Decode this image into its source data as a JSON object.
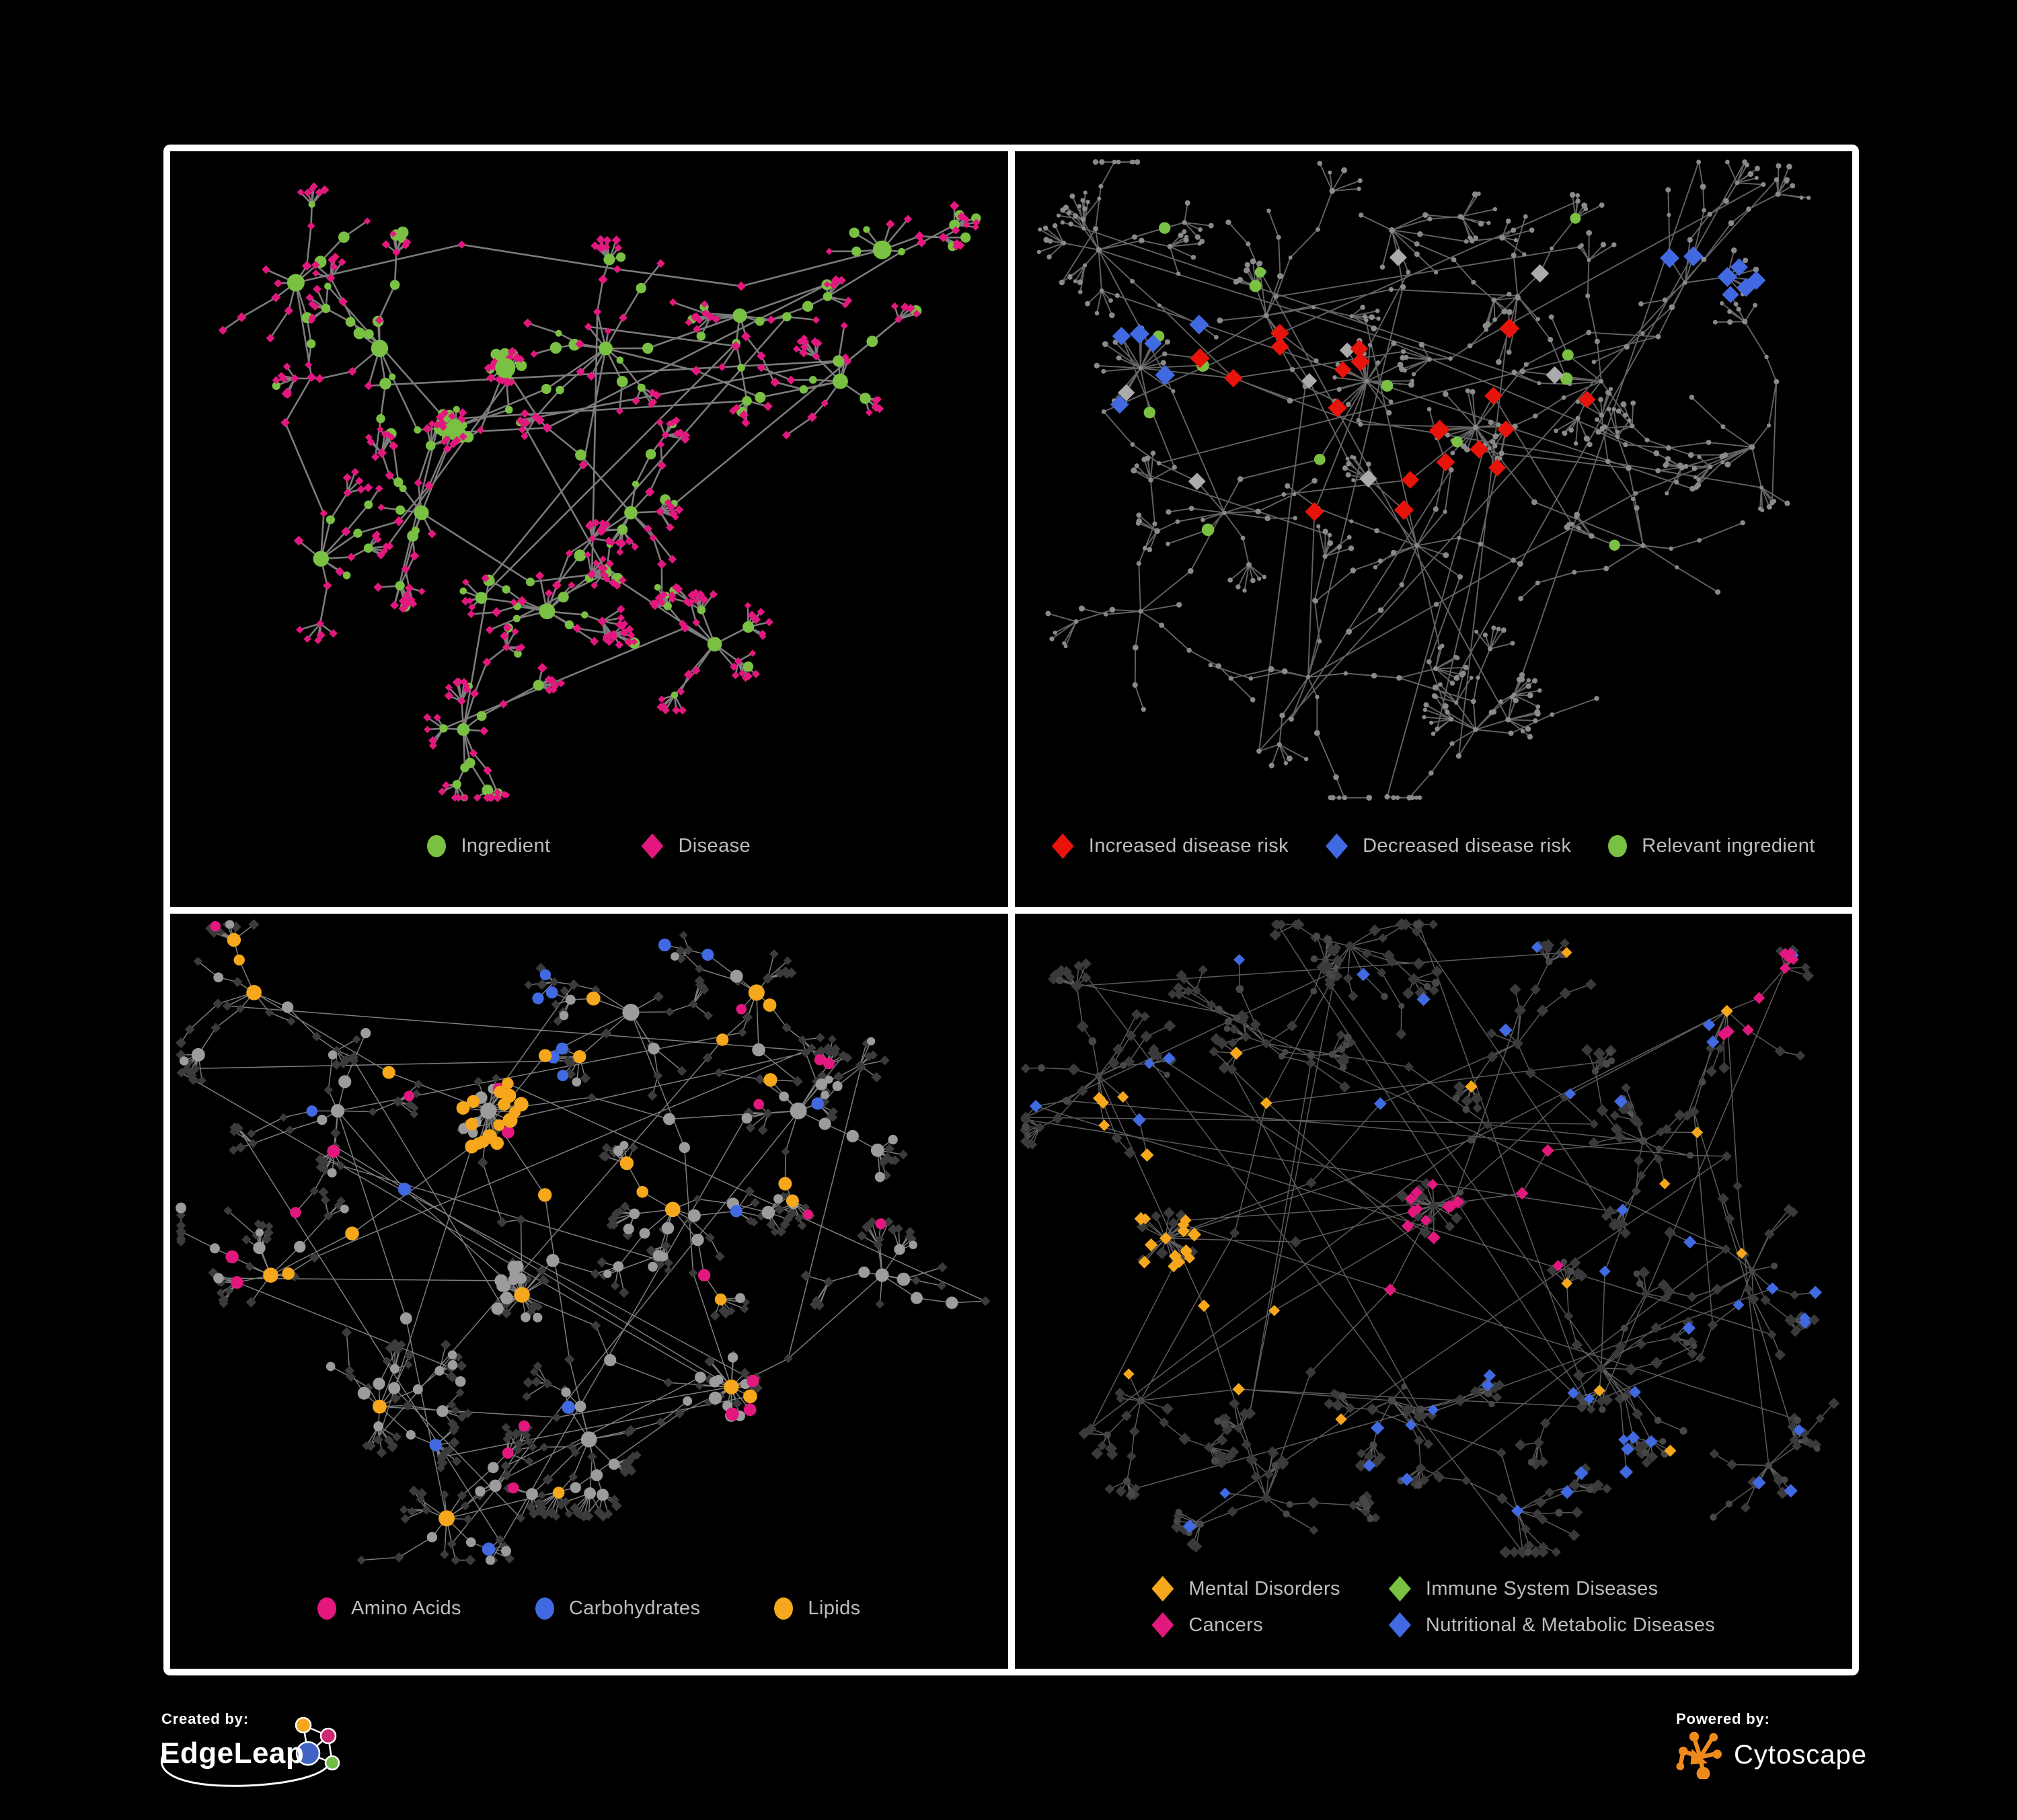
{
  "figure": {
    "background": "#000000",
    "frame_color": "#FFFFFF",
    "legend_text_color": "#BDBDBD"
  },
  "panels": [
    {
      "name": "ingredient-disease",
      "legend_layout": "row",
      "legend_gap": 135,
      "legend": [
        {
          "shape": "circle",
          "color": "#7AC143",
          "label": "Ingredient"
        },
        {
          "shape": "diamond",
          "color": "#E3187F",
          "label": "Disease"
        }
      ],
      "network": {
        "seed": 7,
        "hubs": 14,
        "mega": 2,
        "mega_branches": 24,
        "mega_step": 0.45,
        "hub_pos": [
          [
            0.34,
            0.42
          ],
          [
            0.4,
            0.33
          ],
          [
            0.3,
            0.55
          ],
          [
            0.52,
            0.3
          ],
          [
            0.25,
            0.3
          ],
          [
            0.55,
            0.55
          ],
          [
            0.18,
            0.62
          ],
          [
            0.45,
            0.7
          ],
          [
            0.68,
            0.25
          ],
          [
            0.8,
            0.35
          ],
          [
            0.35,
            0.88
          ],
          [
            0.65,
            0.75
          ],
          [
            0.15,
            0.2
          ],
          [
            0.85,
            0.15
          ]
        ],
        "branch_min": 6,
        "branch_max": 12,
        "steps": 3,
        "step_min": 26,
        "step_max": 60,
        "fan_prob": 0.5,
        "fan_min": 4,
        "fan_max": 9,
        "fan_d_min": 16,
        "fan_d_max": 34,
        "extra_links": 18,
        "edge_color": "#8A8A8A",
        "edge_width": 2.6,
        "rules": [
          {
            "kinds": [
              "hub"
            ],
            "shape": "circle",
            "color": "#7AC143",
            "rmin": 9,
            "rmax": 16,
            "frac": 1
          },
          {
            "kinds": [
              "leaf"
            ],
            "shape": "diamond",
            "color": "#E3187F",
            "rmin": 4.5,
            "rmax": 6,
            "frac": 0.8
          },
          {
            "shape": "diamond",
            "color": "#E3187F",
            "rmin": 5,
            "rmax": 6.5,
            "frac": 0.5
          },
          {
            "shape": "circle",
            "color": "#7AC143",
            "rmin": 5,
            "rmax": 9,
            "frac": 1
          }
        ]
      }
    },
    {
      "name": "disease-risk",
      "legend_layout": "row",
      "legend_gap": 55,
      "legend": [
        {
          "shape": "diamond",
          "color": "#E8140B",
          "label": "Increased disease risk"
        },
        {
          "shape": "diamond",
          "color": "#4169E1",
          "label": "Decreased disease risk"
        },
        {
          "shape": "circle",
          "color": "#7AC143",
          "label": "Relevant ingredient"
        }
      ],
      "network": {
        "seed": 21,
        "hubs": 16,
        "mega": 3,
        "mega_branches": 20,
        "mega_step": 1,
        "hub_pos": [
          [
            0.42,
            0.35
          ],
          [
            0.15,
            0.33
          ],
          [
            0.55,
            0.42
          ],
          [
            0.3,
            0.25
          ],
          [
            0.6,
            0.22
          ],
          [
            0.25,
            0.55
          ],
          [
            0.48,
            0.6
          ],
          [
            0.7,
            0.35
          ],
          [
            0.8,
            0.2
          ],
          [
            0.15,
            0.7
          ],
          [
            0.35,
            0.8
          ],
          [
            0.55,
            0.88
          ],
          [
            0.75,
            0.6
          ],
          [
            0.88,
            0.45
          ],
          [
            0.1,
            0.15
          ],
          [
            0.45,
            0.12
          ]
        ],
        "branch_min": 5,
        "branch_max": 10,
        "steps": 4,
        "step_min": 30,
        "step_max": 72,
        "fan_prob": 0.45,
        "fan_min": 4,
        "fan_max": 8,
        "fan_d_min": 20,
        "fan_d_max": 46,
        "extra_links": 30,
        "edge_color": "#6E6E6E",
        "edge_width": 1.9,
        "rules": [
          {
            "zone": [
              0.78,
              0.1,
              0.93,
              0.24
            ],
            "shape": "diamond",
            "color": "#4169E1",
            "rmin": 11,
            "rmax": 13,
            "frac": 0.5
          },
          {
            "kinds": [
              "chain"
            ],
            "zone": [
              0.07,
              0.25,
              0.22,
              0.48
            ],
            "shape": "diamond",
            "color": "#4169E1",
            "rmin": 11,
            "rmax": 13,
            "frac": 0.25
          },
          {
            "kinds": [
              "chain"
            ],
            "zone": [
              0.22,
              0.18,
              0.72,
              0.55
            ],
            "shape": "diamond",
            "color": "#E8140B",
            "rmin": 11,
            "rmax": 13,
            "frac": 0.22
          },
          {
            "kinds": [
              "chain"
            ],
            "zone": [
              0.68,
              0.75,
              0.88,
              0.95
            ],
            "shape": "diamond",
            "color": "#E8140B",
            "rmin": 11,
            "rmax": 13,
            "frac": 0.18
          },
          {
            "kinds": [
              "chain"
            ],
            "zone": [
              0.1,
              0.15,
              0.7,
              0.6
            ],
            "shape": "diamond",
            "color": "#ABABAB",
            "rmin": 10,
            "rmax": 12,
            "frac": 0.05
          },
          {
            "kinds": [
              "chain"
            ],
            "zone": [
              0.12,
              0.1,
              0.72,
              0.6
            ],
            "shape": "circle",
            "color": "#7AC143",
            "rmin": 7.5,
            "rmax": 9.5,
            "frac": 0.18
          },
          {
            "shape": "circle",
            "color": "#8A8A8A",
            "rmin": 3,
            "rmax": 4.5,
            "frac": 1
          }
        ]
      }
    },
    {
      "name": "ingredient-classes",
      "legend_layout": "row",
      "legend_gap": 110,
      "legend": [
        {
          "shape": "circle",
          "color": "#E3187F",
          "label": "Amino Acids"
        },
        {
          "shape": "circle",
          "color": "#4169E1",
          "label": "Carbohydrates"
        },
        {
          "shape": "circle",
          "color": "#F6A71B",
          "label": "Lipids"
        }
      ],
      "network": {
        "seed": 33,
        "hubs": 14,
        "mega": 3,
        "mega_branches": 30,
        "mega_step": 0.8,
        "hub_pos": [
          [
            0.38,
            0.3
          ],
          [
            0.42,
            0.58
          ],
          [
            0.67,
            0.72
          ],
          [
            0.2,
            0.3
          ],
          [
            0.33,
            0.92
          ],
          [
            0.55,
            0.15
          ],
          [
            0.12,
            0.55
          ],
          [
            0.25,
            0.75
          ],
          [
            0.6,
            0.45
          ],
          [
            0.75,
            0.3
          ],
          [
            0.85,
            0.55
          ],
          [
            0.5,
            0.8
          ],
          [
            0.1,
            0.12
          ],
          [
            0.7,
            0.12
          ]
        ],
        "branch_min": 6,
        "branch_max": 11,
        "steps": 3,
        "step_min": 26,
        "step_max": 64,
        "fan_prob": 0.5,
        "fan_min": 4,
        "fan_max": 10,
        "fan_d_min": 16,
        "fan_d_max": 40,
        "extra_links": 24,
        "edge_color": "#8C8C8C",
        "edge_width": 1.5,
        "rules": [
          {
            "kinds": [
              "hub"
            ],
            "shape": "circle",
            "color": "#9C9C9C",
            "rmin": 10,
            "rmax": 14,
            "frac": 0.7
          },
          {
            "kinds": [
              "hub"
            ],
            "shape": "circle",
            "color": "#F6A71B",
            "rmin": 10,
            "rmax": 13,
            "frac": 1
          },
          {
            "kinds": [
              "chain"
            ],
            "zone": [
              0.25,
              0.15,
              0.52,
              0.45
            ],
            "shape": "circle",
            "color": "#F6A71B",
            "rmin": 8.5,
            "rmax": 11,
            "frac": 0.4
          },
          {
            "zone": [
              0.42,
              0.03,
              0.6,
              0.25
            ],
            "shape": "circle",
            "color": "#4169E1",
            "rmin": 8,
            "rmax": 10,
            "frac": 0.14
          },
          {
            "kinds": [
              "chain"
            ],
            "shape": "circle",
            "color": "#F6A71B",
            "rmin": 8,
            "rmax": 10.5,
            "frac": 0.06
          },
          {
            "kinds": [
              "chain"
            ],
            "shape": "circle",
            "color": "#E3187F",
            "rmin": 8,
            "rmax": 10,
            "frac": 0.05
          },
          {
            "kinds": [
              "chain"
            ],
            "shape": "circle",
            "color": "#4169E1",
            "rmin": 8,
            "rmax": 10,
            "frac": 0.015
          },
          {
            "kinds": [
              "chain"
            ],
            "shape": "circle",
            "color": "#9C9C9C",
            "rmin": 7,
            "rmax": 10,
            "frac": 0.45
          },
          {
            "kinds": [
              "leaf"
            ],
            "shape": "circle",
            "color": "#E3187F",
            "rmin": 7.5,
            "rmax": 9,
            "frac": 0.02
          },
          {
            "kinds": [
              "leaf"
            ],
            "shape": "circle",
            "color": "#9C9C9C",
            "rmin": 6,
            "rmax": 8,
            "frac": 0.1
          },
          {
            "shape": "diamond",
            "color": "#3B3B3B",
            "rmin": 5.5,
            "rmax": 7,
            "frac": 1
          }
        ]
      }
    },
    {
      "name": "disease-categories",
      "legend_layout": "grid",
      "legend_gap": 72,
      "legend": [
        {
          "shape": "diamond",
          "color": "#F6A71B",
          "label": "Mental Disorders"
        },
        {
          "shape": "diamond",
          "color": "#7AC143",
          "label": "Immune System Diseases"
        },
        {
          "shape": "diamond",
          "color": "#E3187F",
          "label": "Cancers"
        },
        {
          "shape": "diamond",
          "color": "#4169E1",
          "label": "Nutritional & Metabolic Diseases"
        }
      ],
      "network": {
        "seed": 52,
        "hubs": 15,
        "mega": 2,
        "mega_branches": 26,
        "mega_step": 0.8,
        "hub_pos": [
          [
            0.18,
            0.5
          ],
          [
            0.5,
            0.45
          ],
          [
            0.75,
            0.35
          ],
          [
            0.3,
            0.2
          ],
          [
            0.6,
            0.2
          ],
          [
            0.85,
            0.15
          ],
          [
            0.15,
            0.75
          ],
          [
            0.45,
            0.75
          ],
          [
            0.7,
            0.7
          ],
          [
            0.88,
            0.55
          ],
          [
            0.3,
            0.9
          ],
          [
            0.6,
            0.92
          ],
          [
            0.1,
            0.25
          ],
          [
            0.4,
            0.05
          ],
          [
            0.9,
            0.85
          ]
        ],
        "branch_min": 6,
        "branch_max": 11,
        "steps": 3,
        "step_min": 26,
        "step_max": 62,
        "fan_prob": 0.45,
        "fan_min": 4,
        "fan_max": 9,
        "fan_d_min": 16,
        "fan_d_max": 38,
        "extra_links": 34,
        "edge_color": "#666666",
        "edge_width": 1.5,
        "rules": [
          {
            "zone": [
              0.06,
              0.28,
              0.33,
              0.75
            ],
            "shape": "diamond",
            "color": "#F6A71B",
            "rmin": 7,
            "rmax": 9,
            "frac": 0.55
          },
          {
            "zone": [
              0.82,
              0.06,
              0.96,
              0.2
            ],
            "shape": "diamond",
            "color": "#E3187F",
            "rmin": 7,
            "rmax": 9,
            "frac": 0.5
          },
          {
            "zone": [
              0.4,
              0.3,
              0.66,
              0.7
            ],
            "shape": "diamond",
            "color": "#E3187F",
            "rmin": 7,
            "rmax": 9,
            "frac": 0.3
          },
          {
            "zone": [
              0.55,
              0.02,
              0.98,
              0.95
            ],
            "shape": "diamond",
            "color": "#4169E1",
            "rmin": 7,
            "rmax": 9,
            "frac": 0.16
          },
          {
            "zone": [
              0.02,
              0.02,
              0.5,
              0.35
            ],
            "shape": "diamond",
            "color": "#4169E1",
            "rmin": 7,
            "rmax": 9,
            "frac": 0.06
          },
          {
            "zone": [
              0.1,
              0.72,
              0.55,
              0.98
            ],
            "shape": "diamond",
            "color": "#4169E1",
            "rmin": 7,
            "rmax": 9,
            "frac": 0.07
          },
          {
            "zone": [
              0.3,
              0.2,
              0.7,
              0.7
            ],
            "shape": "diamond",
            "color": "#7AC143",
            "rmin": 7,
            "rmax": 9,
            "frac": 0.02
          },
          {
            "shape": "diamond",
            "color": "#F6A71B",
            "rmin": 7,
            "rmax": 8.5,
            "frac": 0.02
          },
          {
            "shape": "circle",
            "color": "#474747",
            "rmin": 4.5,
            "rmax": 6,
            "frac": 0.22
          },
          {
            "shape": "diamond",
            "color": "#3A3A3A",
            "rmin": 6,
            "rmax": 8,
            "frac": 1
          }
        ]
      }
    }
  ],
  "footer": {
    "created_by": {
      "label": "Created by:",
      "brand": "EdgeLeap",
      "icon_colors": [
        "#F6A71B",
        "#CB2A6E",
        "#4065C4",
        "#6FBC44"
      ]
    },
    "powered_by": {
      "label": "Powered by:",
      "brand": "Cytoscape",
      "icon_color": "#F18A1D"
    }
  }
}
